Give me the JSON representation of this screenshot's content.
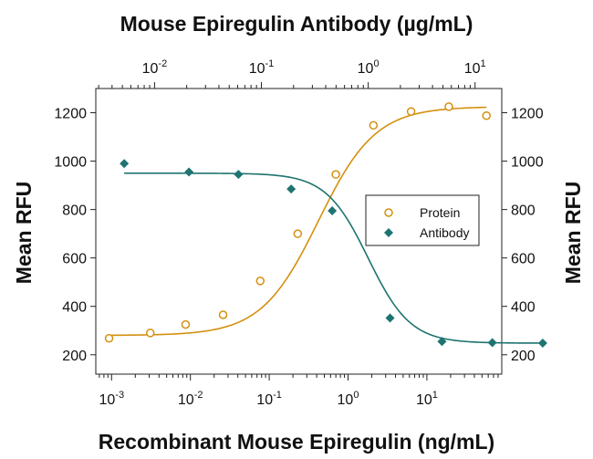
{
  "chart_data": {
    "type": "scatter",
    "title": "",
    "xlabel": "Recombinant Mouse Epiregulin (ng/mL)",
    "x2label": "Mouse Epiregulin Antibody (µg/mL)",
    "ylabel": "Mean RFU",
    "y2label": "Mean RFU",
    "x_scale": "log",
    "x_ticks": [
      {
        "base": "10",
        "exp": "-3"
      },
      {
        "base": "10",
        "exp": "-2"
      },
      {
        "base": "10",
        "exp": "-1"
      },
      {
        "base": "10",
        "exp": "0"
      },
      {
        "base": "10",
        "exp": "1"
      }
    ],
    "x2_ticks": [
      {
        "base": "10",
        "exp": "-2"
      },
      {
        "base": "10",
        "exp": "-1"
      },
      {
        "base": "10",
        "exp": "0"
      },
      {
        "base": "10",
        "exp": "1"
      }
    ],
    "y_ticks": [
      "200",
      "400",
      "600",
      "800",
      "1000",
      "1200"
    ],
    "y2_ticks": [
      "200",
      "400",
      "600",
      "800",
      "1000",
      "1200"
    ],
    "ylim": [
      120,
      1300
    ],
    "xlim_log10": [
      -3.2,
      1.95
    ],
    "x2lim_log10": [
      -2.55,
      1.25
    ],
    "legend_position": "right-middle",
    "grid": false,
    "series": [
      {
        "name": "Protein",
        "axis": "bottom",
        "marker": "open-circle",
        "color": "#d4900f",
        "points": [
          {
            "x": 0.00093,
            "y": 268
          },
          {
            "x": 0.0031,
            "y": 290
          },
          {
            "x": 0.0087,
            "y": 325
          },
          {
            "x": 0.026,
            "y": 365
          },
          {
            "x": 0.077,
            "y": 505
          },
          {
            "x": 0.23,
            "y": 700
          },
          {
            "x": 0.7,
            "y": 945
          },
          {
            "x": 2.1,
            "y": 1148
          },
          {
            "x": 6.3,
            "y": 1205
          },
          {
            "x": 19,
            "y": 1225
          },
          {
            "x": 57,
            "y": 1188
          }
        ],
        "fit": {
          "bottom": 280,
          "top": 1225,
          "ec50": 0.42,
          "hill": 1.2
        }
      },
      {
        "name": "Antibody",
        "axis": "top",
        "marker": "filled-diamond",
        "color": "#1e7470",
        "points": [
          {
            "x": 0.0052,
            "y": 990
          },
          {
            "x": 0.021,
            "y": 955
          },
          {
            "x": 0.061,
            "y": 945
          },
          {
            "x": 0.19,
            "y": 885
          },
          {
            "x": 0.46,
            "y": 795
          },
          {
            "x": 1.6,
            "y": 352
          },
          {
            "x": 4.9,
            "y": 255
          },
          {
            "x": 14.5,
            "y": 250
          },
          {
            "x": 43,
            "y": 248
          }
        ],
        "fit": {
          "bottom": 248,
          "top": 950,
          "ec50": 1.0,
          "hill": 2.2
        }
      }
    ]
  }
}
